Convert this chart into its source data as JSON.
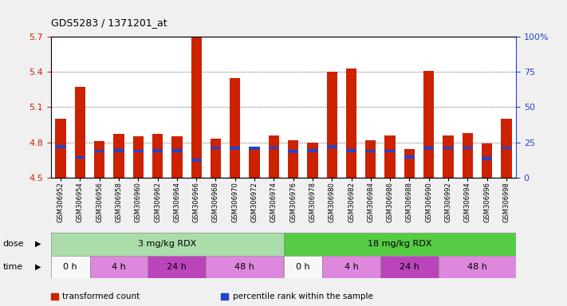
{
  "title": "GDS5283 / 1371201_at",
  "samples": [
    "GSM306952",
    "GSM306954",
    "GSM306956",
    "GSM306958",
    "GSM306960",
    "GSM306962",
    "GSM306964",
    "GSM306966",
    "GSM306968",
    "GSM306970",
    "GSM306972",
    "GSM306974",
    "GSM306976",
    "GSM306978",
    "GSM306980",
    "GSM306982",
    "GSM306984",
    "GSM306986",
    "GSM306988",
    "GSM306990",
    "GSM306992",
    "GSM306994",
    "GSM306996",
    "GSM306998"
  ],
  "bar_values": [
    5.0,
    5.27,
    4.81,
    4.87,
    4.85,
    4.87,
    4.85,
    5.7,
    4.83,
    5.35,
    4.75,
    4.86,
    4.82,
    4.8,
    5.4,
    5.43,
    4.82,
    4.86,
    4.74,
    5.41,
    4.86,
    4.88,
    4.79,
    5.0
  ],
  "percentile_values": [
    4.765,
    4.672,
    4.726,
    4.728,
    4.726,
    4.728,
    4.73,
    4.648,
    4.753,
    4.748,
    4.75,
    4.753,
    4.722,
    4.73,
    4.765,
    4.73,
    4.726,
    4.726,
    4.677,
    4.748,
    4.753,
    4.753,
    4.66,
    4.753
  ],
  "ymin": 4.5,
  "ymax": 5.7,
  "yticks": [
    4.5,
    4.8,
    5.1,
    5.4,
    5.7
  ],
  "ytick_labels": [
    "4.5",
    "4.8",
    "5.1",
    "5.4",
    "5.7"
  ],
  "right_yticks_val": [
    4.5,
    4.8,
    5.1,
    5.4,
    5.7
  ],
  "right_ytick_labels": [
    "0",
    "25",
    "50",
    "75",
    "100%"
  ],
  "bar_color": "#cc2200",
  "blue_color": "#2244cc",
  "bg_color": "#f0f0f0",
  "plot_bg_color": "#ffffff",
  "tick_area_color": "#d8d8d8",
  "dose_groups": [
    {
      "text": "3 mg/kg RDX",
      "start": 0,
      "end": 11,
      "color": "#aaddaa"
    },
    {
      "text": "18 mg/kg RDX",
      "start": 12,
      "end": 23,
      "color": "#55cc44"
    }
  ],
  "time_groups": [
    {
      "text": "0 h",
      "start": 0,
      "end": 1,
      "color": "#f8f8f8"
    },
    {
      "text": "4 h",
      "start": 2,
      "end": 4,
      "color": "#dd88dd"
    },
    {
      "text": "24 h",
      "start": 5,
      "end": 7,
      "color": "#bb44bb"
    },
    {
      "text": "48 h",
      "start": 8,
      "end": 11,
      "color": "#dd88dd"
    },
    {
      "text": "0 h",
      "start": 12,
      "end": 13,
      "color": "#f8f8f8"
    },
    {
      "text": "4 h",
      "start": 14,
      "end": 16,
      "color": "#dd88dd"
    },
    {
      "text": "24 h",
      "start": 17,
      "end": 19,
      "color": "#bb44bb"
    },
    {
      "text": "48 h",
      "start": 20,
      "end": 23,
      "color": "#dd88dd"
    }
  ],
  "legend": [
    {
      "color": "#cc2200",
      "label": "transformed count"
    },
    {
      "color": "#2244cc",
      "label": "percentile rank within the sample"
    }
  ]
}
